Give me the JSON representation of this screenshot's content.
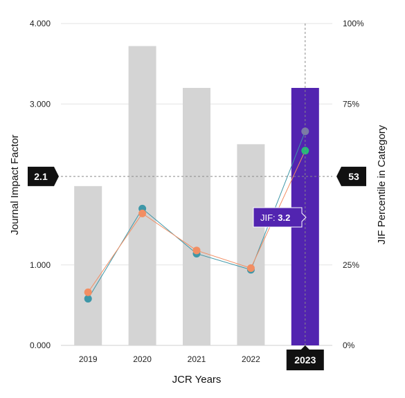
{
  "chart_data": {
    "type": "bar",
    "xlabel": "JCR Years",
    "ylabel_left": "Journal Impact Factor",
    "ylabel_right": "JIF Percentile in Category",
    "categories": [
      "2019",
      "2020",
      "2021",
      "2022",
      "2023"
    ],
    "left_ylim": [
      0,
      4
    ],
    "left_ticks": [
      "0.000",
      "1.000",
      "3.000",
      "4.000"
    ],
    "left_tick_values": [
      0,
      1,
      3,
      4
    ],
    "right_ylim": [
      0,
      100
    ],
    "right_ticks": [
      "0%",
      "25%",
      "75%",
      "100%"
    ],
    "right_tick_values": [
      0,
      25,
      75,
      100
    ],
    "grid": true,
    "selected_category": "2023",
    "bars": {
      "values": [
        1.98,
        3.72,
        3.2,
        2.5,
        3.2
      ],
      "color": "#d4d4d4",
      "highlight_color": "#5224b0"
    },
    "series": [
      {
        "values": [
          14.5,
          42.5,
          28.5,
          23.5,
          66.5
        ],
        "color": "#3e97a8"
      },
      {
        "values": [
          16.5,
          41.0,
          29.5,
          24.0,
          60.5
        ],
        "color": "#f28e63"
      }
    ],
    "point_colors_2023": [
      "#7a7aa8",
      "#26b879"
    ],
    "crosshair": {
      "left_badge": "2.1",
      "left_value": 2.1,
      "right_badge": "53",
      "right_value": 53,
      "x_badge": "2023"
    },
    "tooltip": {
      "label": "JIF:",
      "value": "3.2"
    }
  }
}
